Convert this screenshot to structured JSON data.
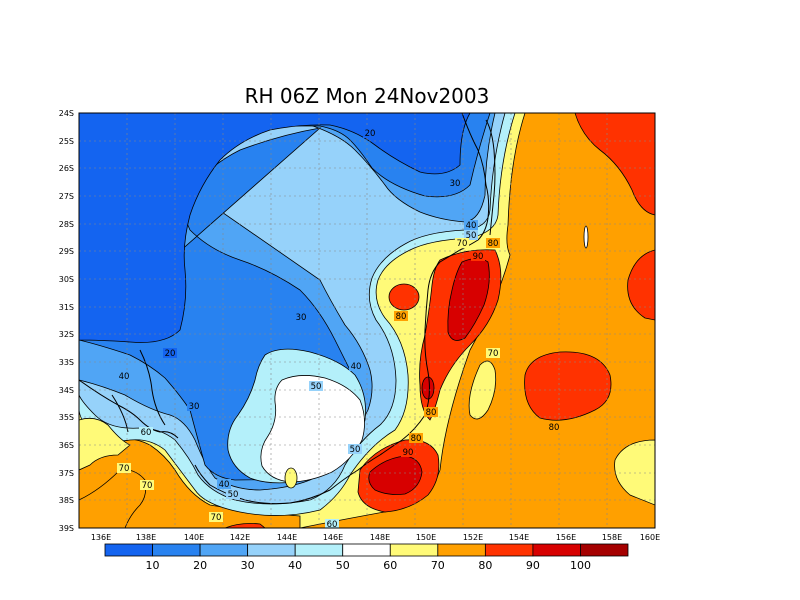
{
  "map": {
    "title": "RH 06Z Mon 24Nov2003",
    "lat_labels": [
      "24S",
      "25S",
      "26S",
      "27S",
      "28S",
      "29S",
      "30S",
      "31S",
      "32S",
      "33S",
      "34S",
      "35S",
      "36S",
      "37S",
      "38S",
      "39S"
    ],
    "lon_labels": [
      "136E",
      "138E",
      "140E",
      "142E",
      "144E",
      "146E",
      "148E",
      "150E",
      "152E",
      "154E",
      "156E",
      "158E",
      "160E"
    ],
    "contour_labels": [
      "20",
      "30",
      "40",
      "50",
      "60",
      "70",
      "80",
      "90"
    ],
    "colorbar": {
      "labels": [
        "10",
        "20",
        "30",
        "40",
        "50",
        "60",
        "70",
        "80",
        "90",
        "100"
      ],
      "colors": [
        "#1464f0",
        "#2882f0",
        "#50a5f5",
        "#96d2fa",
        "#b4f0fa",
        "#ffffff",
        "#fffa78",
        "#ffa000",
        "#ff3200",
        "#d70000",
        "#a50000"
      ]
    },
    "fill_colors": {
      "c20": "#1464f0",
      "c30": "#2882f0",
      "c40": "#50a5f5",
      "c50": "#96d2fa",
      "c60": "#b4f0fa",
      "c70": "#ffffff",
      "c80": "#fffa78",
      "c90": "#ffa000",
      "c100": "#ff3200",
      "c110": "#d70000"
    }
  }
}
